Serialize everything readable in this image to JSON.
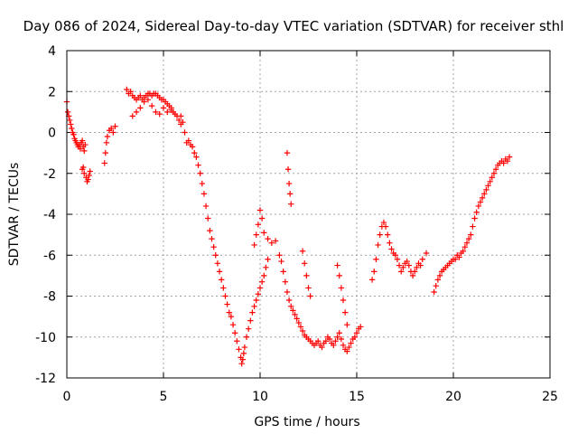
{
  "chart_data": {
    "type": "scatter",
    "title": "Day 086 of 2024, Sidereal Day-to-day VTEC variation (SDTVAR) for receiver sthl",
    "xlabel": "GPS time / hours",
    "ylabel": "SDTVAR / TECUs",
    "xlim": [
      0,
      25
    ],
    "ylim": [
      -12,
      4
    ],
    "xticks": [
      0,
      5,
      10,
      15,
      20,
      25
    ],
    "yticks": [
      -12,
      -10,
      -8,
      -6,
      -4,
      -2,
      0,
      2,
      4
    ],
    "xtick_labels": [
      "0",
      "5",
      "10",
      "15",
      "20",
      "25"
    ],
    "ytick_labels": [
      "-12",
      "-10",
      "-8",
      "-6",
      "-4",
      "-2",
      "0",
      "2",
      "4"
    ],
    "grid": true,
    "marker": "+",
    "series": [
      {
        "name": "SDTVAR",
        "color": "#ff0000",
        "x": [
          0.0,
          0.05,
          0.1,
          0.15,
          0.2,
          0.25,
          0.3,
          0.35,
          0.4,
          0.45,
          0.5,
          0.55,
          0.6,
          0.65,
          0.7,
          0.75,
          0.8,
          0.85,
          0.9,
          0.95,
          0.8,
          0.85,
          0.9,
          1.0,
          1.05,
          1.1,
          1.15,
          1.2,
          1.95,
          2.0,
          2.05,
          2.1,
          2.2,
          2.3,
          2.4,
          2.5,
          3.1,
          3.2,
          3.3,
          3.4,
          3.5,
          3.6,
          3.7,
          3.8,
          3.9,
          4.0,
          4.1,
          4.2,
          4.3,
          4.4,
          4.5,
          4.6,
          4.7,
          4.8,
          4.9,
          5.0,
          5.1,
          5.2,
          5.3,
          5.4,
          5.5,
          5.6,
          5.7,
          5.8,
          5.9,
          3.4,
          3.6,
          3.8,
          4.0,
          4.2,
          4.4,
          4.6,
          4.8,
          5.0,
          5.2,
          5.4,
          5.9,
          6.0,
          6.1,
          6.2,
          6.3,
          6.4,
          6.5,
          6.6,
          6.7,
          6.8,
          6.9,
          7.0,
          7.1,
          7.2,
          7.3,
          7.4,
          7.5,
          7.6,
          7.7,
          7.8,
          7.9,
          8.0,
          8.1,
          8.2,
          8.3,
          8.4,
          8.5,
          8.6,
          8.7,
          8.8,
          8.9,
          9.0,
          9.05,
          9.1,
          9.15,
          9.2,
          9.3,
          9.4,
          9.5,
          9.6,
          9.7,
          9.8,
          9.9,
          10.0,
          10.1,
          10.2,
          10.3,
          10.4,
          9.7,
          9.8,
          9.9,
          10.0,
          10.1,
          10.2,
          10.4,
          10.6,
          10.8,
          11.0,
          11.1,
          11.2,
          11.3,
          11.4,
          11.5,
          11.6,
          11.7,
          11.8,
          11.9,
          12.0,
          12.1,
          12.2,
          12.3,
          12.4,
          12.5,
          12.6,
          12.7,
          12.8,
          12.9,
          13.0,
          13.1,
          13.2,
          13.3,
          13.4,
          13.5,
          13.6,
          13.7,
          13.8,
          13.9,
          14.0,
          14.1,
          14.2,
          14.3,
          14.4,
          14.5,
          14.6,
          14.7,
          14.8,
          14.9,
          15.0,
          15.1,
          15.2,
          11.4,
          11.45,
          11.5,
          11.55,
          11.6,
          12.2,
          12.3,
          12.4,
          12.5,
          12.6,
          14.0,
          14.1,
          14.2,
          14.3,
          14.4,
          14.5,
          15.8,
          15.9,
          16.0,
          16.1,
          16.2,
          16.3,
          16.4,
          16.5,
          16.6,
          16.7,
          16.8,
          16.9,
          17.0,
          17.1,
          17.2,
          17.3,
          17.4,
          17.5,
          17.6,
          17.7,
          17.8,
          17.9,
          18.0,
          18.1,
          18.2,
          18.3,
          18.4,
          18.6,
          19.0,
          19.1,
          19.2,
          19.3,
          19.4,
          19.5,
          19.6,
          19.7,
          19.8,
          19.9,
          20.0,
          20.1,
          20.2,
          20.3,
          20.4,
          20.5,
          20.6,
          20.7,
          20.8,
          20.9,
          21.0,
          21.1,
          21.2,
          21.3,
          21.4,
          21.5,
          21.6,
          21.7,
          21.8,
          21.9,
          22.0,
          22.1,
          22.2,
          22.3,
          22.4,
          22.5,
          22.6,
          22.7,
          22.8,
          22.9
        ],
        "y": [
          1.5,
          1.0,
          0.8,
          0.6,
          0.4,
          0.2,
          0.0,
          -0.1,
          -0.3,
          -0.4,
          -0.5,
          -0.6,
          -0.7,
          -0.6,
          -0.8,
          -0.5,
          -0.4,
          -0.7,
          -0.9,
          -0.6,
          -1.8,
          -1.7,
          -2.0,
          -2.2,
          -2.4,
          -2.3,
          -2.1,
          -1.9,
          -1.5,
          -1.0,
          -0.5,
          -0.2,
          0.1,
          0.2,
          0.0,
          0.3,
          2.1,
          1.9,
          2.0,
          1.8,
          1.7,
          1.6,
          1.7,
          1.8,
          1.6,
          1.7,
          1.8,
          1.9,
          1.9,
          1.8,
          1.9,
          1.9,
          1.8,
          1.7,
          1.6,
          1.6,
          1.5,
          1.4,
          1.3,
          1.2,
          1.0,
          0.9,
          0.8,
          0.6,
          0.4,
          0.8,
          1.0,
          1.2,
          1.5,
          1.6,
          1.3,
          1.0,
          0.9,
          1.2,
          1.0,
          1.1,
          0.8,
          0.5,
          0.0,
          -0.5,
          -0.4,
          -0.6,
          -0.7,
          -1.0,
          -1.2,
          -1.6,
          -2.0,
          -2.5,
          -3.0,
          -3.6,
          -4.2,
          -4.8,
          -5.2,
          -5.6,
          -6.0,
          -6.4,
          -6.8,
          -7.2,
          -7.6,
          -8.0,
          -8.4,
          -8.8,
          -9.0,
          -9.4,
          -9.8,
          -10.2,
          -10.6,
          -11.0,
          -11.3,
          -11.1,
          -10.8,
          -10.5,
          -10.0,
          -9.6,
          -9.2,
          -8.8,
          -8.5,
          -8.2,
          -7.9,
          -7.6,
          -7.3,
          -7.0,
          -6.6,
          -6.2,
          -5.5,
          -5.0,
          -4.5,
          -3.8,
          -4.2,
          -4.9,
          -5.2,
          -5.4,
          -5.3,
          -6.0,
          -6.3,
          -6.8,
          -7.3,
          -7.8,
          -8.2,
          -8.5,
          -8.7,
          -8.9,
          -9.1,
          -9.3,
          -9.5,
          -9.7,
          -9.9,
          -10.0,
          -10.1,
          -10.2,
          -10.3,
          -10.4,
          -10.3,
          -10.2,
          -10.4,
          -10.5,
          -10.3,
          -10.2,
          -10.0,
          -10.1,
          -10.3,
          -10.4,
          -10.2,
          -10.0,
          -9.8,
          -10.1,
          -10.4,
          -10.6,
          -10.7,
          -10.5,
          -10.3,
          -10.1,
          -10.0,
          -9.8,
          -9.6,
          -9.5,
          -1.0,
          -1.8,
          -2.5,
          -3.0,
          -3.5,
          -5.8,
          -6.4,
          -7.0,
          -7.6,
          -8.0,
          -6.5,
          -7.0,
          -7.6,
          -8.2,
          -8.8,
          -9.4,
          -7.2,
          -6.8,
          -6.2,
          -5.5,
          -5.0,
          -4.6,
          -4.4,
          -4.6,
          -5.0,
          -5.4,
          -5.7,
          -5.9,
          -6.0,
          -6.2,
          -6.5,
          -6.8,
          -6.6,
          -6.4,
          -6.3,
          -6.5,
          -6.8,
          -7.0,
          -6.8,
          -6.6,
          -6.4,
          -6.5,
          -6.2,
          -5.9,
          -7.8,
          -7.5,
          -7.2,
          -7.0,
          -6.8,
          -6.7,
          -6.6,
          -6.5,
          -6.4,
          -6.3,
          -6.2,
          -6.2,
          -6.0,
          -6.1,
          -5.9,
          -5.8,
          -5.6,
          -5.4,
          -5.2,
          -5.0,
          -4.6,
          -4.2,
          -3.9,
          -3.6,
          -3.4,
          -3.2,
          -3.0,
          -2.8,
          -2.6,
          -2.4,
          -2.2,
          -2.0,
          -1.8,
          -1.6,
          -1.5,
          -1.4,
          -1.5,
          -1.3,
          -1.4,
          -1.2
        ]
      }
    ]
  }
}
